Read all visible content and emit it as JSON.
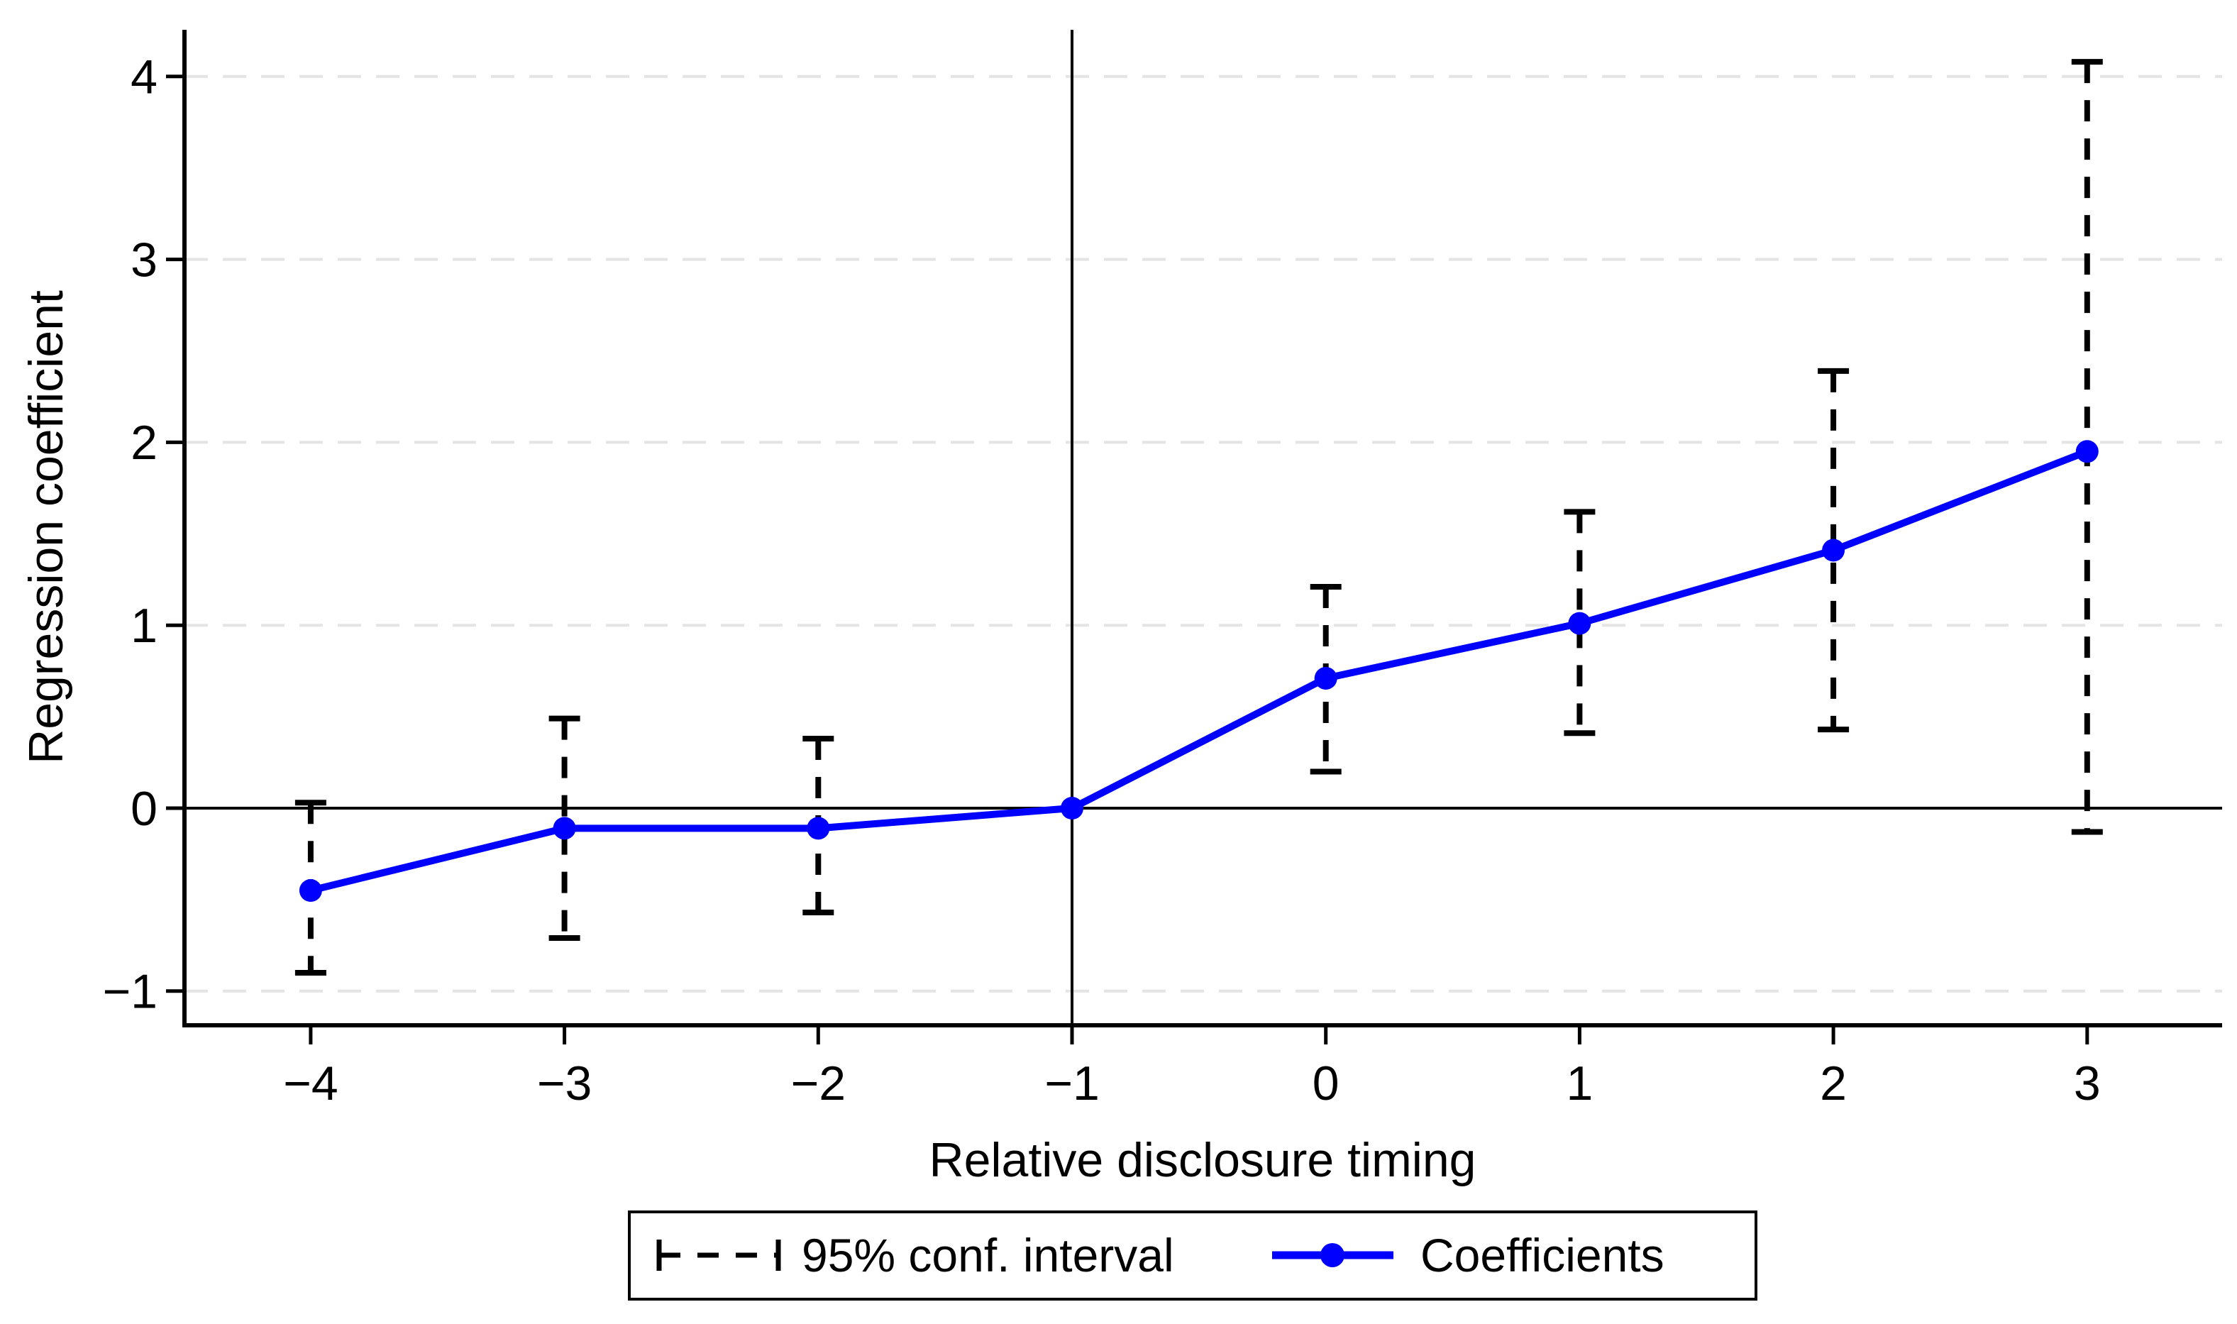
{
  "chart_data": {
    "type": "line",
    "title": "",
    "xlabel": "Relative disclosure timing",
    "ylabel": "Regression coefficient",
    "x": [
      -4,
      -3,
      -2,
      -1,
      0,
      1,
      2,
      3
    ],
    "series": [
      {
        "name": "Coefficients",
        "values": [
          -0.45,
          -0.11,
          -0.11,
          0,
          0.71,
          1.01,
          1.41,
          1.95
        ]
      }
    ],
    "ci_low": [
      -0.9,
      -0.71,
      -0.57,
      null,
      0.2,
      0.41,
      0.43,
      -0.13
    ],
    "ci_high": [
      0.03,
      0.49,
      0.38,
      null,
      1.21,
      1.62,
      2.39,
      4.08
    ],
    "reference_line_x": -1,
    "zero_line_y": 0,
    "xlim": [
      -4.5,
      3.54
    ],
    "ylim": [
      -1.19,
      4.26
    ],
    "grid": true,
    "legend_position": "bottom",
    "yticks": [
      {
        "v": -1,
        "label": "−1"
      },
      {
        "v": 0,
        "label": "0"
      },
      {
        "v": 1,
        "label": "1"
      },
      {
        "v": 2,
        "label": "2"
      },
      {
        "v": 3,
        "label": "3"
      },
      {
        "v": 4,
        "label": "4"
      }
    ],
    "xticks": [
      {
        "v": -4,
        "label": "−4"
      },
      {
        "v": -3,
        "label": "−3"
      },
      {
        "v": -2,
        "label": "−2"
      },
      {
        "v": -1,
        "label": "−1"
      },
      {
        "v": 0,
        "label": "0"
      },
      {
        "v": 1,
        "label": "1"
      },
      {
        "v": 2,
        "label": "2"
      },
      {
        "v": 3,
        "label": "3"
      }
    ],
    "legend": [
      {
        "label": "95% conf. interval",
        "type": "ci"
      },
      {
        "label": "Coefficients",
        "type": "line-marker"
      }
    ],
    "colors": {
      "coefficients": "#0000ff",
      "ci": "#000000",
      "gridline": "#e4e4e4",
      "axis": "#000000",
      "background": "#ffffff"
    }
  }
}
